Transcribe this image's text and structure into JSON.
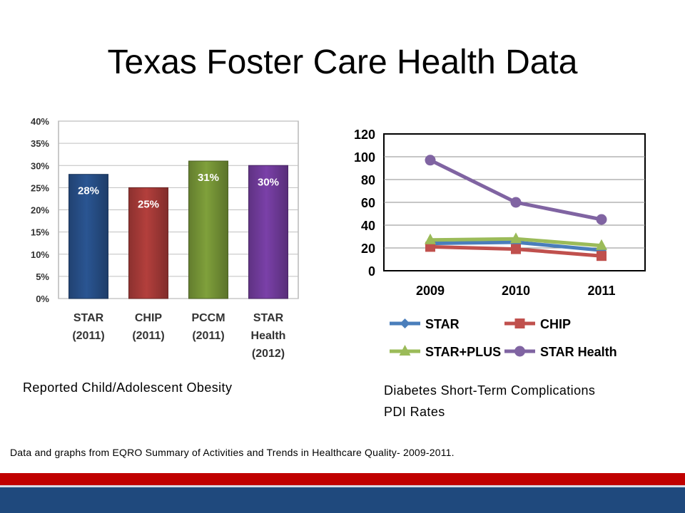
{
  "slide": {
    "title": "Texas Foster Care Health Data",
    "source_note": "Data and graphs from EQRO Summary of Activities and Trends in Healthcare Quality- 2009-2011.",
    "colors": {
      "footer_red": "#c00000",
      "footer_blue": "#1f497d"
    }
  },
  "captions": {
    "left": "Reported Child/Adolescent Obesity",
    "right_line1": "Diabetes Short-Term Complications",
    "right_line2": "PDI Rates"
  },
  "chart_data": [
    {
      "type": "bar",
      "title": "Reported Child/Adolescent Obesity",
      "categories": [
        [
          "STAR",
          "(2011)"
        ],
        [
          "CHIP",
          "(2011)"
        ],
        [
          "PCCM",
          "(2011)"
        ],
        [
          "STAR",
          "Health",
          "(2012)"
        ]
      ],
      "values": [
        28,
        25,
        31,
        30
      ],
      "data_labels": [
        "28%",
        "25%",
        "31%",
        "30%"
      ],
      "colors": [
        "#2a5592",
        "#b33f3c",
        "#7fa03b",
        "#7a40a8"
      ],
      "yticks": [
        "0%",
        "5%",
        "10%",
        "15%",
        "20%",
        "25%",
        "30%",
        "35%",
        "40%"
      ],
      "ylim": [
        0,
        40
      ],
      "grid": true
    },
    {
      "type": "line",
      "title": "Diabetes Short-Term Complications PDI Rates",
      "x": [
        "2009",
        "2010",
        "2011"
      ],
      "yticks": [
        "0",
        "20",
        "40",
        "60",
        "80",
        "100",
        "120"
      ],
      "ylim": [
        0,
        120
      ],
      "grid": true,
      "legend_position": "bottom",
      "series": [
        {
          "name": "STAR",
          "values": [
            24,
            25,
            18
          ],
          "color": "#4a7ebb",
          "marker": "diamond"
        },
        {
          "name": "CHIP",
          "values": [
            21,
            19,
            13
          ],
          "color": "#c0504d",
          "marker": "square"
        },
        {
          "name": "STAR+PLUS",
          "values": [
            27,
            28,
            22
          ],
          "color": "#9bbb59",
          "marker": "triangle"
        },
        {
          "name": "STAR Health",
          "values": [
            97,
            60,
            45
          ],
          "color": "#8064a2",
          "marker": "circle"
        }
      ]
    }
  ]
}
